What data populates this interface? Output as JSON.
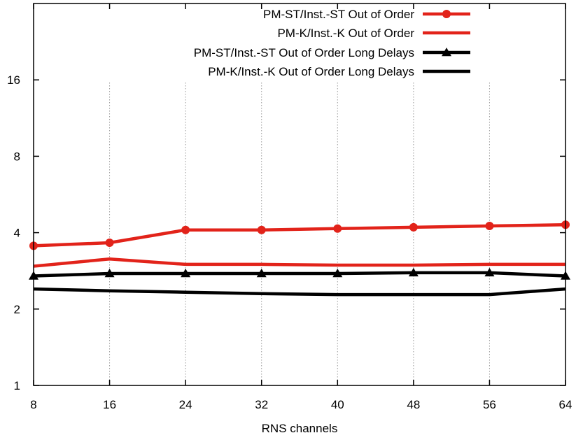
{
  "chart_data": {
    "type": "line",
    "title": "",
    "xlabel": "RNS channels",
    "ylabel": "",
    "yscale": "log2",
    "x": [
      8,
      16,
      24,
      32,
      40,
      48,
      56,
      64
    ],
    "xticks": [
      "8",
      "16",
      "24",
      "32",
      "40",
      "48",
      "56",
      "64"
    ],
    "yticks": [
      {
        "value": 1,
        "label": "1"
      },
      {
        "value": 2,
        "label": "2"
      },
      {
        "value": 4,
        "label": "4"
      },
      {
        "value": 8,
        "label": "8"
      },
      {
        "value": 16,
        "label": "16"
      }
    ],
    "xlim": [
      8,
      64
    ],
    "ylim": [
      1,
      32
    ],
    "grid": "vertical dotted",
    "legend_position": "top-right",
    "series": [
      {
        "name": "PM-ST/Inst.-ST Out of Order",
        "color": "#e2231a",
        "marker": "circle",
        "values": [
          3.55,
          3.65,
          4.1,
          4.1,
          4.15,
          4.2,
          4.25,
          4.3
        ]
      },
      {
        "name": "PM-K/Inst.-K Out of Order",
        "color": "#e2231a",
        "marker": "none",
        "values": [
          2.95,
          3.15,
          3.0,
          3.0,
          2.98,
          2.98,
          3.0,
          3.0
        ]
      },
      {
        "name": "PM-ST/Inst.-ST Out of Order Long Delays",
        "color": "#000000",
        "marker": "triangle",
        "values": [
          2.7,
          2.76,
          2.76,
          2.76,
          2.76,
          2.78,
          2.78,
          2.7
        ]
      },
      {
        "name": "PM-K/Inst.-K Out of Order Long Delays",
        "color": "#000000",
        "marker": "none",
        "values": [
          2.4,
          2.36,
          2.33,
          2.3,
          2.28,
          2.28,
          2.28,
          2.4
        ]
      }
    ]
  }
}
